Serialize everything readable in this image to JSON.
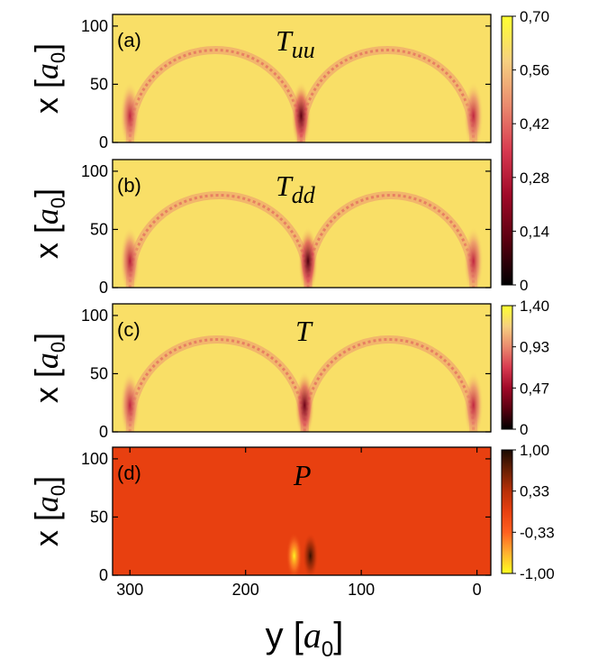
{
  "chart_data": [
    {
      "type": "heatmap",
      "panel_label": "(a)",
      "title_main": "T",
      "title_sub": "uu",
      "ylabel_main": "x [",
      "ylabel_var": "a",
      "ylabel_sub": "0",
      "ylabel_close": "]",
      "xlim": [
        315,
        -12
      ],
      "ylim": [
        0,
        110
      ],
      "yticks": [
        0,
        50,
        100
      ],
      "colorbar": {
        "range": [
          0,
          0.7
        ],
        "tick_labels": [
          "0",
          "0,14",
          "0,28",
          "0,42",
          "0,56",
          "0,70"
        ],
        "colors": [
          "#000000",
          "#5a0010",
          "#a00828",
          "#d83a50",
          "#ea8a6e",
          "#f6d080",
          "#ffff30"
        ]
      },
      "background_value": 0.62,
      "features": [
        {
          "kind": "arch",
          "from_y": 300,
          "to_y": 152,
          "peak_x": 95
        },
        {
          "kind": "arch",
          "from_y": 152,
          "to_y": 3,
          "peak_x": 95
        },
        {
          "kind": "hotspot",
          "y": 300,
          "x": 12,
          "value": 0.3
        },
        {
          "kind": "hotspot",
          "y": 152,
          "x": 12,
          "value": 0.12
        },
        {
          "kind": "hotspot",
          "y": 3,
          "x": 12,
          "value": 0.3
        }
      ]
    },
    {
      "type": "heatmap",
      "panel_label": "(b)",
      "title_main": "T",
      "title_sub": "dd",
      "ylabel_main": "x [",
      "ylabel_var": "a",
      "ylabel_sub": "0",
      "ylabel_close": "]",
      "xlim": [
        315,
        -12
      ],
      "ylim": [
        0,
        110
      ],
      "yticks": [
        0,
        50,
        100
      ],
      "background_value": 0.62,
      "features": [
        {
          "kind": "arch",
          "from_y": 300,
          "to_y": 146,
          "peak_x": 95
        },
        {
          "kind": "arch",
          "from_y": 146,
          "to_y": 3,
          "peak_x": 95
        },
        {
          "kind": "hotspot",
          "y": 300,
          "x": 12,
          "value": 0.28
        },
        {
          "kind": "hotspot",
          "y": 146,
          "x": 12,
          "value": 0.1
        },
        {
          "kind": "hotspot",
          "y": 3,
          "x": 12,
          "value": 0.3
        }
      ]
    },
    {
      "type": "heatmap",
      "panel_label": "(c)",
      "title_main": "T",
      "title_sub": "",
      "ylabel_main": "x [",
      "ylabel_var": "a",
      "ylabel_sub": "0",
      "ylabel_close": "]",
      "xlim": [
        315,
        -12
      ],
      "ylim": [
        0,
        110
      ],
      "yticks": [
        0,
        50,
        100
      ],
      "colorbar": {
        "range": [
          0,
          1.4
        ],
        "tick_labels": [
          "0",
          "0,47",
          "0,93",
          "1,40"
        ],
        "colors": [
          "#000000",
          "#5a0010",
          "#a00828",
          "#d83a50",
          "#ea8a6e",
          "#f6d080",
          "#ffff30"
        ]
      },
      "background_value": 1.24,
      "features": [
        {
          "kind": "arch",
          "from_y": 300,
          "to_y": 149,
          "peak_x": 95
        },
        {
          "kind": "arch",
          "from_y": 149,
          "to_y": 3,
          "peak_x": 95
        },
        {
          "kind": "hotspot",
          "y": 300,
          "x": 12,
          "value": 0.6
        },
        {
          "kind": "hotspot",
          "y": 149,
          "x": 12,
          "value": 0.3
        },
        {
          "kind": "hotspot",
          "y": 3,
          "x": 12,
          "value": 0.6
        }
      ]
    },
    {
      "type": "heatmap",
      "panel_label": "(d)",
      "title_main": "P",
      "title_sub": "",
      "ylabel_main": "x [",
      "ylabel_var": "a",
      "ylabel_sub": "0",
      "ylabel_close": "]",
      "xlabel_main": "y [",
      "xlabel_var": "a",
      "xlabel_sub": "0",
      "xlabel_close": "]",
      "xlim": [
        315,
        -12
      ],
      "ylim": [
        0,
        110
      ],
      "xticks": [
        300,
        200,
        100,
        0
      ],
      "yticks": [
        0,
        50,
        100
      ],
      "colorbar": {
        "range": [
          -1.0,
          1.0
        ],
        "tick_labels": [
          "-1,00",
          "-0,33",
          "0,33",
          "1,00"
        ],
        "colors": [
          "#ffff20",
          "#ffb030",
          "#ff6020",
          "#e84010",
          "#b83008",
          "#6a2004",
          "#1a0a00"
        ]
      },
      "background_value": 0.0,
      "features": [
        {
          "kind": "hotspot",
          "y": 158,
          "x": 12,
          "value": -0.95
        },
        {
          "kind": "hotspot",
          "y": 144,
          "x": 12,
          "value": 0.9
        }
      ]
    }
  ]
}
